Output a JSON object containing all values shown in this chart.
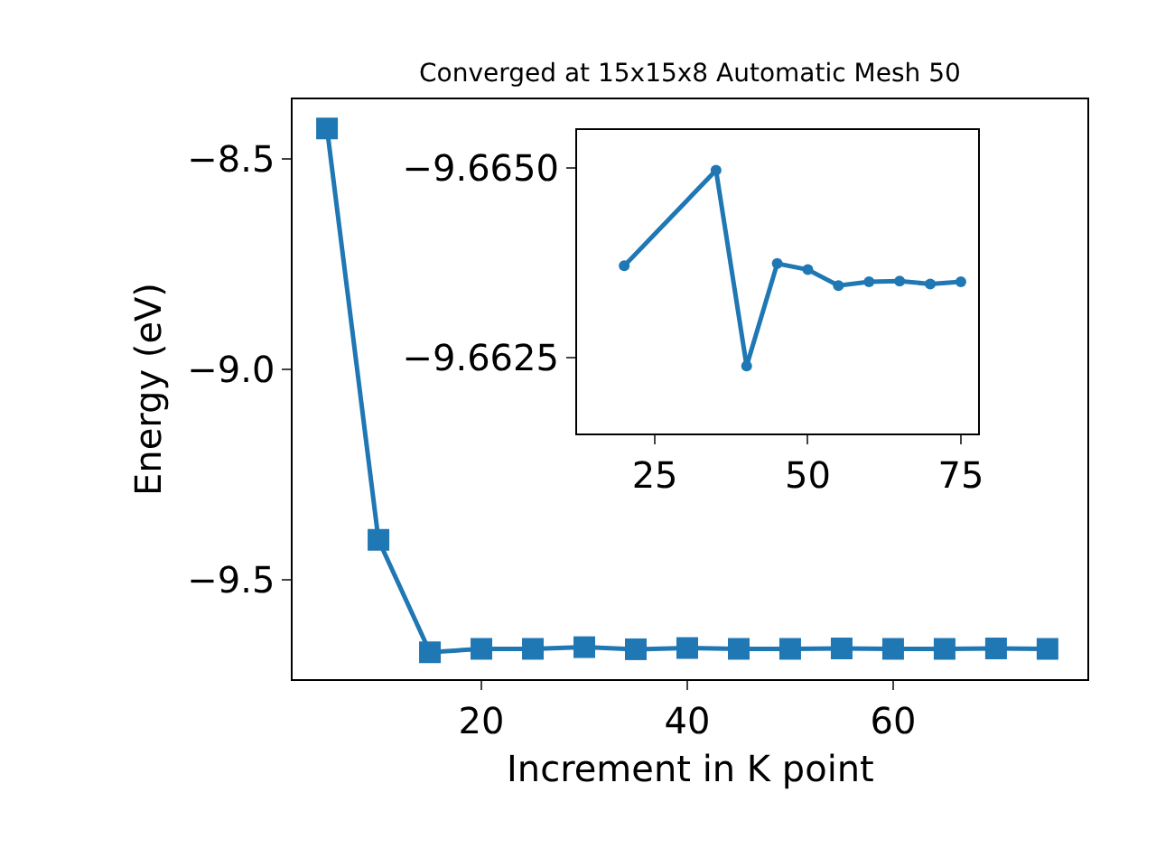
{
  "chart_data": [
    {
      "type": "line",
      "title": "Converged at 15x15x8 Automatic Mesh 50",
      "xlabel": "Increment in K point",
      "ylabel": "Energy (eV)",
      "x": [
        5,
        10,
        15,
        20,
        25,
        30,
        35,
        40,
        45,
        50,
        55,
        60,
        65,
        70,
        75
      ],
      "series": [
        {
          "color": "#1f77b4",
          "values": [
            -8.427,
            -9.405,
            -9.672,
            -9.664,
            -9.664,
            -9.66,
            -9.665,
            -9.662,
            -9.664,
            -9.664,
            -9.663,
            -9.664,
            -9.664,
            -9.663,
            -9.664
          ]
        }
      ],
      "xlim": [
        1.7,
        78.9
      ],
      "ylim": [
        -9.736,
        -8.358
      ],
      "xticks": [
        20,
        40,
        60
      ],
      "yticks": [
        {
          "value": -8.5,
          "label": "−8.5"
        },
        {
          "value": -9.0,
          "label": "−9.0"
        },
        {
          "value": -9.5,
          "label": "−9.5"
        }
      ],
      "marker": "square",
      "line_style": "solid"
    },
    {
      "type": "line",
      "x": [
        20,
        35,
        40,
        45,
        50,
        55,
        60,
        65,
        70,
        75
      ],
      "series": [
        {
          "color": "#1f77b4",
          "values": [
            -9.66371,
            -9.66497,
            -9.66239,
            -9.66374,
            -9.66366,
            -9.66345,
            -9.6635,
            -9.66351,
            -9.66347,
            -9.6635
          ]
        }
      ],
      "xlim": [
        12.3,
        77.8
      ],
      "ylim": [
        -9.6615,
        -9.6655
      ],
      "xticks": [
        25,
        50,
        75
      ],
      "yticks": [
        {
          "value": -9.665,
          "label": "−9.6650"
        },
        {
          "value": -9.6625,
          "label": "−9.6625"
        }
      ],
      "marker": "circle",
      "line_style": "solid"
    }
  ]
}
